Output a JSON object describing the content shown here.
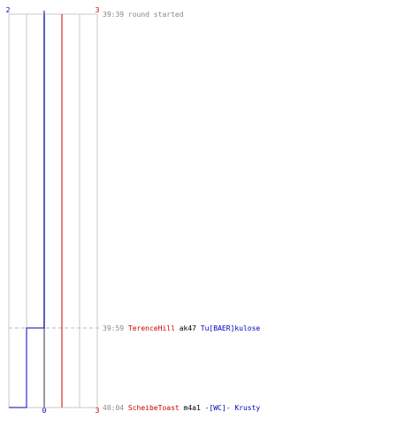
{
  "chart_data": {
    "type": "line",
    "title": "",
    "team_a_color": "#0000bb",
    "team_b_color": "#cc0000",
    "team_a_start": "2",
    "team_a_end": "0",
    "team_b_start": "3",
    "team_b_end": "3",
    "events": [
      {
        "time": "39:39",
        "type": "round",
        "text": "round started",
        "team_a_alive": 2,
        "team_b_alive": 3
      },
      {
        "time": "39:59",
        "type": "kill",
        "killer": "TerenceHill",
        "killer_team": "b",
        "weapon": "ak47",
        "victim": "Tu[BAER]kulose",
        "victim_team": "a",
        "team_a_alive": 1,
        "team_b_alive": 3
      },
      {
        "time": "40:04",
        "type": "kill",
        "killer": "ScheibeToast",
        "killer_team": "b",
        "weapon": "m4a1",
        "victim": "-[WC]- Krusty",
        "victim_team": "a",
        "team_a_alive": 0,
        "team_b_alive": 3
      }
    ],
    "ylim": [
      0,
      5
    ],
    "grid": true
  }
}
